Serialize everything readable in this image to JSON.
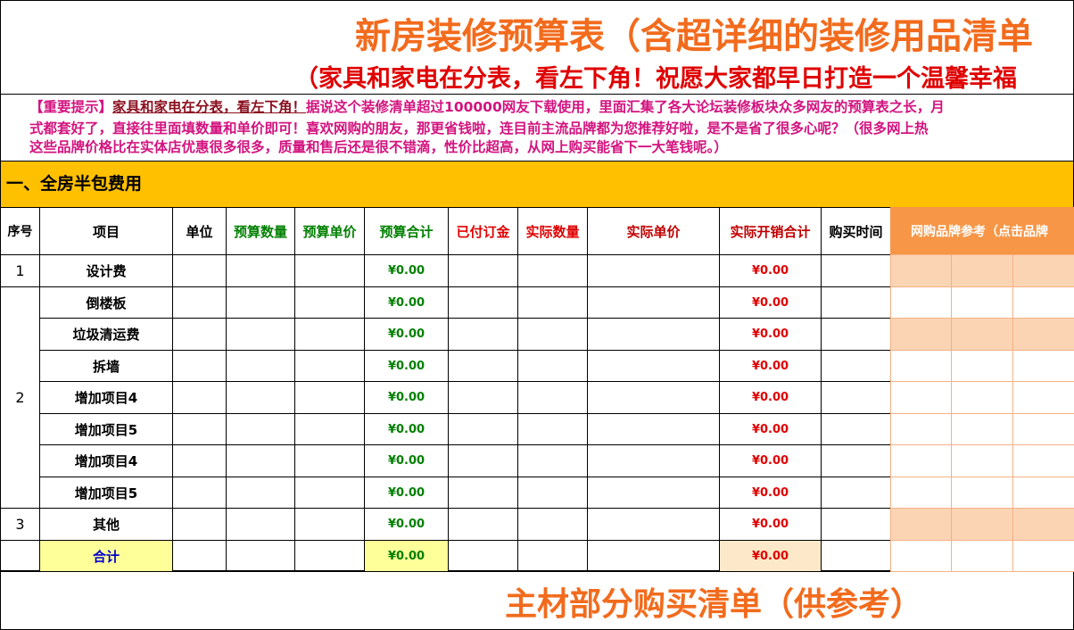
{
  "header": {
    "title": "新房装修预算表（含超详细的装修用品清单",
    "subtitle": "（家具和家电在分表，看左下角！祝愿大家都早日打造一个温馨幸福"
  },
  "notice": {
    "lead": "【重要提示】",
    "link": "家具和家电在分表，看左下角！",
    "lines": [
      "据说这个装修清单超过100000网友下载使用，里面汇集了各大论坛装修板块众多网友的预算表之长，月",
      "式都套好了，直接往里面填数量和单价即可！喜欢网购的朋友，那更省钱啦，连目前主流品牌都为您推荐好啦，是不是省了很多心呢？（很多网上热",
      "这些品牌价格比在实体店优惠很多很多，质量和售后还是很不错滴，性价比超高，从网上购买能省下一大笔钱呢。）"
    ]
  },
  "section": "一、全房半包费用",
  "table": {
    "columns": [
      "序号",
      "项目",
      "单位",
      "预算数量",
      "预算单价",
      "预算合计",
      "已付订金",
      "实际数量",
      "实际单价",
      "实际开销合计",
      "购买时间",
      "网购品牌参考（点击品牌"
    ],
    "rows": [
      {
        "no": "1",
        "item": "设计费",
        "budget_total": "¥0.00",
        "actual_total": "¥0.00"
      },
      {
        "no": "2",
        "item": "倒楼板",
        "budget_total": "¥0.00",
        "actual_total": "¥0.00"
      },
      {
        "item": "垃圾清运费",
        "budget_total": "¥0.00",
        "actual_total": "¥0.00"
      },
      {
        "item": "拆墙",
        "budget_total": "¥0.00",
        "actual_total": "¥0.00"
      },
      {
        "item": "增加项目4",
        "budget_total": "¥0.00",
        "actual_total": "¥0.00"
      },
      {
        "item": "增加项目5",
        "budget_total": "¥0.00",
        "actual_total": "¥0.00"
      },
      {
        "item": "增加项目4",
        "budget_total": "¥0.00",
        "actual_total": "¥0.00"
      },
      {
        "item": "增加项目5",
        "budget_total": "¥0.00",
        "actual_total": "¥0.00"
      },
      {
        "no": "3",
        "item": "其他",
        "budget_total": "¥0.00",
        "actual_total": "¥0.00"
      },
      {
        "item": "合计",
        "budget_total": "¥0.00",
        "actual_total": "¥0.00"
      }
    ]
  },
  "footer": "主材部分购买清单（供参考）"
}
